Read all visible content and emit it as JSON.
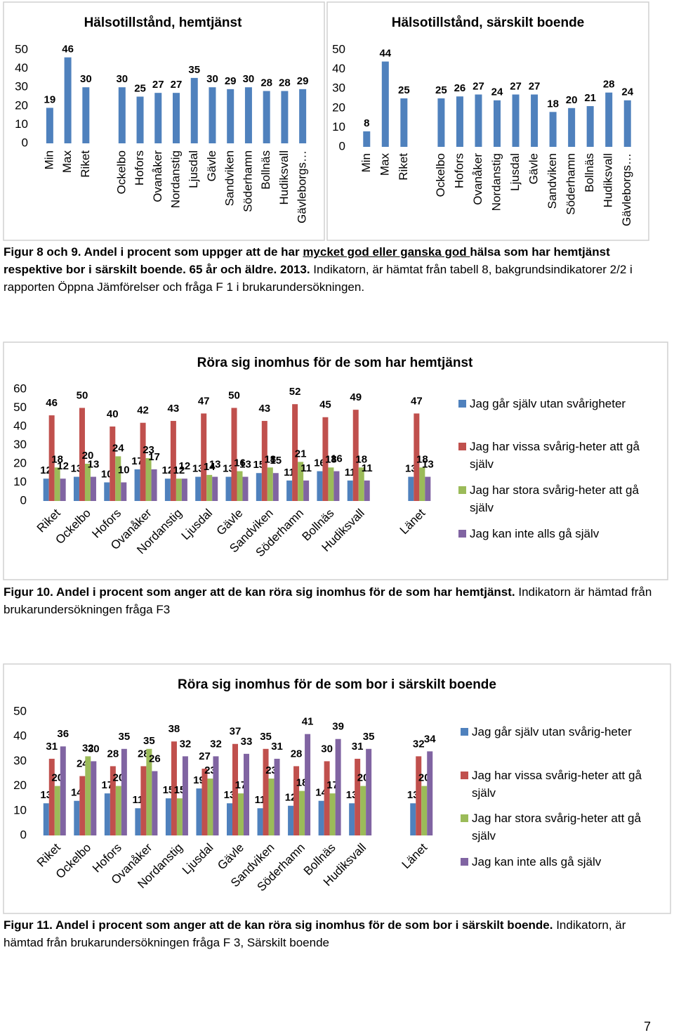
{
  "chart_data": [
    {
      "type": "bar",
      "title": "Hälsotillstånd, hemtjänst",
      "categories": [
        "Min",
        "Max",
        "Riket",
        null,
        "Ockelbo",
        "Hofors",
        "Ovanåker",
        "Nordanstig",
        "Ljusdal",
        "Gävle",
        "Sandviken",
        "Söderhamn",
        "Bollnäs",
        "Hudiksvall",
        "Gävleborgs…"
      ],
      "values": [
        19,
        46,
        30,
        null,
        30,
        25,
        27,
        27,
        35,
        30,
        29,
        30,
        28,
        28,
        29
      ],
      "color": "#4f81bd",
      "ylim": [
        0,
        50
      ],
      "yticks": [
        0,
        10,
        20,
        30,
        40,
        50
      ]
    },
    {
      "type": "bar",
      "title": "Hälsotillstånd, särskilt boende",
      "categories": [
        "Min",
        "Max",
        "Riket",
        null,
        "Ockelbo",
        "Hofors",
        "Ovanåker",
        "Nordanstig",
        "Ljusdal",
        "Gävle",
        "Sandviken",
        "Söderhamn",
        "Bollnäs",
        "Hudiksvall",
        "Gävleborgs…"
      ],
      "values": [
        8,
        44,
        25,
        null,
        25,
        26,
        27,
        24,
        27,
        27,
        18,
        20,
        21,
        28,
        24
      ],
      "color": "#4f81bd",
      "ylim": [
        0,
        50
      ],
      "yticks": [
        0,
        10,
        20,
        30,
        40,
        50
      ]
    },
    {
      "type": "bar",
      "title": "Röra sig inomhus för de som har hemtjänst",
      "categories": [
        "Riket",
        "Ockelbo",
        "Hofors",
        "Ovanåker",
        "Nordanstig",
        "Ljusdal",
        "Gävle",
        "Sandviken",
        "Söderhamn",
        "Bollnäs",
        "Hudiksvall",
        null,
        "Länet"
      ],
      "series": [
        {
          "name": "Jag går själv utan svårigheter",
          "color": "#4f81bd",
          "values": [
            12,
            13,
            10,
            17,
            12,
            13,
            13,
            15,
            11,
            16,
            11,
            null,
            13
          ]
        },
        {
          "name": "Jag har vissa svårig-heter att gå själv",
          "color": "#c0504d",
          "values": [
            46,
            50,
            40,
            42,
            43,
            47,
            50,
            43,
            52,
            45,
            49,
            null,
            47
          ]
        },
        {
          "name": "Jag har stora svårig-heter att gå själv",
          "color": "#9bbb59",
          "values": [
            18,
            20,
            24,
            23,
            12,
            14,
            16,
            18,
            21,
            18,
            18,
            null,
            18
          ]
        },
        {
          "name": "Jag kan inte alls gå själv",
          "color": "#8064a2",
          "values": [
            12,
            13,
            10,
            17,
            12,
            13,
            13,
            15,
            11,
            16,
            11,
            null,
            13
          ]
        }
      ],
      "ylim": [
        0,
        60
      ],
      "yticks": [
        0,
        10,
        20,
        30,
        40,
        50,
        60
      ],
      "legend": "right"
    },
    {
      "type": "bar",
      "title": "Röra sig inomhus för de som bor i särskilt boende",
      "categories": [
        "Riket",
        "Ockelbo",
        "Hofors",
        "Ovanåker",
        "Nordanstig",
        "Ljusdal",
        "Gävle",
        "Sandviken",
        "Söderhamn",
        "Bollnäs",
        "Hudiksvall",
        null,
        "Länet"
      ],
      "series": [
        {
          "name": "Jag går själv utan svårig-heter",
          "color": "#4f81bd",
          "values": [
            13,
            14,
            17,
            11,
            15,
            19,
            13,
            11,
            12,
            14,
            13,
            null,
            13
          ]
        },
        {
          "name": "Jag har vissa svårig-heter att gå själv",
          "color": "#c0504d",
          "values": [
            31,
            24,
            28,
            28,
            38,
            27,
            37,
            35,
            28,
            30,
            31,
            null,
            32
          ]
        },
        {
          "name": "Jag har stora svårig-heter att gå själv",
          "color": "#9bbb59",
          "values": [
            20,
            32,
            20,
            35,
            15,
            23,
            17,
            23,
            18,
            17,
            20,
            null,
            20
          ]
        },
        {
          "name": "Jag kan inte alls gå själv",
          "color": "#8064a2",
          "values": [
            36,
            30,
            35,
            26,
            32,
            32,
            33,
            31,
            41,
            39,
            35,
            null,
            34
          ]
        }
      ],
      "ylim": [
        0,
        50
      ],
      "yticks": [
        0,
        10,
        20,
        30,
        40,
        50
      ],
      "legend": "right"
    }
  ],
  "captions": [
    {
      "parts": [
        {
          "text": "Figur 8 och 9. Andel i procent som uppger att de har ",
          "style": "bold"
        },
        {
          "text": "mycket god eller ganska god ",
          "style": "bold-underline"
        },
        {
          "text": "hälsa som har hemtjänst respektive bor i särskilt boende. 65 år och äldre. 2013.",
          "style": "bold"
        },
        {
          "text": " Indikatorn, är hämtat från tabell 8, bakgrundsindikatorer 2/2 i rapporten Öppna Jämförelser och fråga F 1 i brukarundersökningen.",
          "style": "normal"
        }
      ]
    },
    {
      "parts": [
        {
          "text": "Figur 10. Andel i procent som anger att de kan röra sig inomhus för de som har hemtjänst.",
          "style": "bold"
        },
        {
          "text": " Indikatorn är hämtad från brukarundersökningen fråga F3",
          "style": "normal"
        }
      ]
    },
    {
      "parts": [
        {
          "text": "Figur 11. Andel i procent som anger att de kan röra sig inomhus för de som bor i särskilt boende.",
          "style": "bold"
        },
        {
          "text": " Indikatorn, är hämtad från brukarundersökningen fråga F 3, Särskilt boende",
          "style": "normal"
        }
      ]
    }
  ],
  "page_number": "7"
}
